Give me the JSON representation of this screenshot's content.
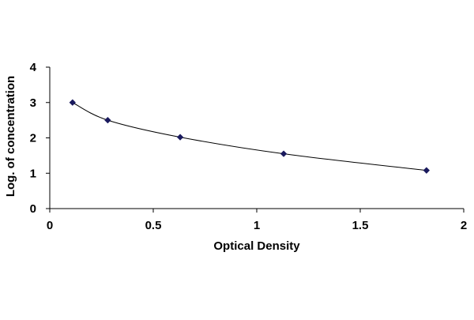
{
  "chart_data": {
    "type": "scatter",
    "title": "",
    "xlabel": "Optical Density",
    "ylabel": "Log. of concentration",
    "xlim": [
      0,
      2
    ],
    "ylim": [
      0,
      4
    ],
    "xticks": [
      "0",
      "0.5",
      "1",
      "1.5",
      "2"
    ],
    "yticks": [
      "0",
      "1",
      "2",
      "3",
      "4"
    ],
    "grid": false,
    "legend": "none",
    "series": [
      {
        "x": [
          0.11,
          0.28,
          0.63,
          1.13,
          1.82
        ],
        "y": [
          3.0,
          2.5,
          2.02,
          1.55,
          1.08
        ],
        "marker": "diamond",
        "line": "smooth",
        "color": "#1a1a5e"
      }
    ]
  }
}
